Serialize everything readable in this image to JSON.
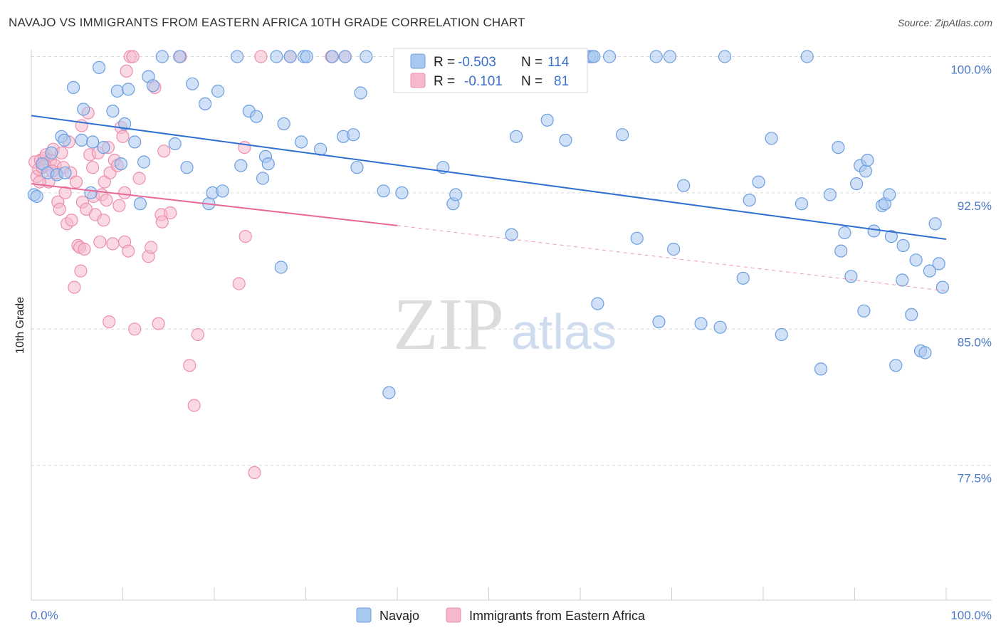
{
  "title": "NAVAJO VS IMMIGRANTS FROM EASTERN AFRICA 10TH GRADE CORRELATION CHART",
  "source": "Source: ZipAtlas.com",
  "watermark": {
    "zip": "ZIP",
    "atlas": "atlas"
  },
  "colors": {
    "navajo_fill": "#a9c8f0",
    "navajo_stroke": "#6a9ee0",
    "navajo_line": "#2f6fd0",
    "ea_fill": "#f6b9cc",
    "ea_stroke": "#ec8fae",
    "ea_line": "#e8679a",
    "tick_text": "#4a78c8",
    "grid": "#d8d8d8"
  },
  "legend": {
    "rows": [
      {
        "r_label": "R =",
        "r_value": "-0.503",
        "n_label": "N =",
        "n_value": "114"
      },
      {
        "r_label": "R =",
        "r_value": "-0.101",
        "n_label": "N =",
        "n_value": "81"
      }
    ]
  },
  "bottom_legend": [
    "Navajo",
    "Immigrants from Eastern Africa"
  ],
  "chart_data": {
    "type": "scatter",
    "title": "NAVAJO VS IMMIGRANTS FROM EASTERN AFRICA 10TH GRADE CORRELATION CHART",
    "xlabel": "",
    "ylabel": "10th Grade",
    "xlim": [
      0,
      100
    ],
    "ylim": [
      70.5,
      101
    ],
    "x_tick_labels": [
      "0.0%",
      "100.0%"
    ],
    "y_ticks": [
      77.5,
      85.0,
      92.5,
      100.0
    ],
    "y_tick_labels": [
      "77.5%",
      "85.0%",
      "92.5%",
      "100.0%"
    ],
    "grid": "horizontal dashed",
    "legend_position": "top-center",
    "series": [
      {
        "name": "Navajo",
        "r": -0.503,
        "n": 114,
        "trend": {
          "x": [
            0,
            100
          ],
          "y": [
            96.75,
            89.95
          ]
        },
        "points": [
          [
            0.3,
            92.4
          ],
          [
            0.6,
            92.3
          ],
          [
            1.2,
            94.1
          ],
          [
            1.8,
            93.6
          ],
          [
            2.2,
            94.7
          ],
          [
            2.8,
            93.5
          ],
          [
            3.3,
            95.6
          ],
          [
            3.6,
            95.4
          ],
          [
            4.6,
            98.3
          ],
          [
            5.5,
            95.4
          ],
          [
            5.7,
            97.1
          ],
          [
            6.5,
            92.5
          ],
          [
            6.7,
            95.3
          ],
          [
            7.4,
            99.4
          ],
          [
            7.9,
            95.0
          ],
          [
            8.9,
            97.0
          ],
          [
            9.4,
            98.1
          ],
          [
            9.8,
            94.1
          ],
          [
            10.2,
            96.3
          ],
          [
            10.6,
            98.2
          ],
          [
            11.3,
            95.3
          ],
          [
            11.9,
            91.9
          ],
          [
            12.3,
            94.2
          ],
          [
            12.8,
            98.9
          ],
          [
            13.3,
            98.4
          ],
          [
            14.3,
            100.0
          ],
          [
            15.7,
            95.2
          ],
          [
            16.2,
            100.0
          ],
          [
            17.0,
            93.9
          ],
          [
            17.6,
            98.5
          ],
          [
            19.0,
            97.4
          ],
          [
            19.4,
            91.9
          ],
          [
            19.8,
            92.5
          ],
          [
            20.4,
            98.1
          ],
          [
            20.9,
            92.6
          ],
          [
            22.5,
            100.0
          ],
          [
            22.9,
            94.0
          ],
          [
            23.8,
            97.0
          ],
          [
            24.6,
            96.7
          ],
          [
            25.3,
            93.3
          ],
          [
            25.6,
            94.5
          ],
          [
            25.9,
            94.1
          ],
          [
            26.8,
            100.0
          ],
          [
            27.3,
            88.4
          ],
          [
            27.6,
            96.3
          ],
          [
            28.3,
            100.0
          ],
          [
            29.5,
            95.3
          ],
          [
            29.8,
            100.0
          ],
          [
            30.1,
            100.0
          ],
          [
            31.6,
            94.9
          ],
          [
            32.9,
            100.0
          ],
          [
            34.1,
            95.6
          ],
          [
            34.3,
            100.0
          ],
          [
            35.2,
            95.7
          ],
          [
            35.6,
            93.9
          ],
          [
            36.0,
            98.0
          ],
          [
            36.6,
            100.0
          ],
          [
            38.5,
            92.6
          ],
          [
            39.1,
            81.5
          ],
          [
            40.5,
            92.5
          ],
          [
            45.0,
            93.9
          ],
          [
            46.1,
            91.9
          ],
          [
            46.4,
            92.4
          ],
          [
            52.5,
            90.2
          ],
          [
            53.0,
            95.6
          ],
          [
            53.3,
            100.0
          ],
          [
            56.4,
            96.5
          ],
          [
            58.4,
            95.4
          ],
          [
            61.0,
            100.0
          ],
          [
            61.3,
            100.0
          ],
          [
            61.5,
            100.0
          ],
          [
            61.9,
            86.4
          ],
          [
            63.2,
            100.0
          ],
          [
            64.6,
            95.7
          ],
          [
            66.2,
            90.0
          ],
          [
            68.3,
            100.0
          ],
          [
            68.6,
            85.4
          ],
          [
            69.8,
            100.0
          ],
          [
            70.2,
            89.4
          ],
          [
            71.3,
            92.9
          ],
          [
            73.2,
            85.3
          ],
          [
            75.3,
            85.1
          ],
          [
            75.8,
            100.0
          ],
          [
            77.8,
            87.8
          ],
          [
            78.5,
            92.1
          ],
          [
            79.5,
            93.1
          ],
          [
            80.9,
            95.5
          ],
          [
            82.0,
            84.7
          ],
          [
            84.2,
            91.9
          ],
          [
            84.8,
            100.0
          ],
          [
            86.3,
            82.8
          ],
          [
            87.3,
            92.4
          ],
          [
            88.2,
            95.0
          ],
          [
            88.5,
            89.3
          ],
          [
            88.9,
            90.3
          ],
          [
            89.6,
            87.9
          ],
          [
            90.2,
            93.0
          ],
          [
            90.6,
            94.0
          ],
          [
            91.0,
            86.0
          ],
          [
            91.2,
            93.7
          ],
          [
            91.4,
            94.3
          ],
          [
            92.1,
            90.4
          ],
          [
            93.0,
            91.8
          ],
          [
            93.3,
            91.9
          ],
          [
            93.8,
            92.4
          ],
          [
            94.0,
            90.1
          ],
          [
            94.5,
            83.0
          ],
          [
            95.2,
            87.7
          ],
          [
            95.3,
            89.6
          ],
          [
            96.2,
            85.8
          ],
          [
            96.7,
            88.8
          ],
          [
            97.2,
            83.8
          ],
          [
            97.7,
            83.7
          ],
          [
            98.2,
            88.2
          ],
          [
            98.8,
            90.8
          ],
          [
            99.2,
            88.6
          ],
          [
            99.6,
            87.3
          ],
          [
            3.7,
            93.6
          ]
        ]
      },
      {
        "name": "Immigrants from Eastern Africa",
        "r": -0.101,
        "n": 81,
        "trend_solid": {
          "x": [
            0,
            40
          ],
          "y": [
            93.0,
            90.7
          ]
        },
        "trend_dashed": {
          "x": [
            40,
            100
          ],
          "y": [
            90.7,
            87.1
          ]
        },
        "points": [
          [
            0.4,
            94.2
          ],
          [
            0.6,
            93.4
          ],
          [
            0.8,
            93.8
          ],
          [
            1.0,
            94.3
          ],
          [
            1.2,
            93.9
          ],
          [
            1.4,
            94.4
          ],
          [
            1.6,
            94.6
          ],
          [
            1.9,
            93.1
          ],
          [
            2.1,
            94.3
          ],
          [
            2.4,
            94.9
          ],
          [
            2.6,
            94.0
          ],
          [
            2.7,
            93.6
          ],
          [
            2.9,
            92.0
          ],
          [
            3.1,
            91.6
          ],
          [
            3.3,
            94.7
          ],
          [
            3.5,
            93.9
          ],
          [
            3.7,
            92.5
          ],
          [
            3.9,
            90.8
          ],
          [
            4.1,
            95.3
          ],
          [
            4.3,
            93.6
          ],
          [
            4.4,
            91.0
          ],
          [
            4.7,
            87.3
          ],
          [
            4.9,
            93.1
          ],
          [
            5.1,
            89.6
          ],
          [
            5.3,
            89.5
          ],
          [
            5.4,
            88.2
          ],
          [
            5.5,
            96.2
          ],
          [
            5.6,
            92.0
          ],
          [
            5.8,
            89.4
          ],
          [
            6.0,
            91.6
          ],
          [
            6.2,
            96.9
          ],
          [
            6.4,
            94.6
          ],
          [
            6.7,
            93.9
          ],
          [
            6.8,
            92.3
          ],
          [
            7.0,
            91.3
          ],
          [
            7.3,
            94.7
          ],
          [
            7.5,
            89.8
          ],
          [
            7.7,
            92.4
          ],
          [
            7.9,
            91.0
          ],
          [
            8.0,
            93.1
          ],
          [
            8.2,
            92.1
          ],
          [
            8.4,
            95.0
          ],
          [
            8.5,
            85.4
          ],
          [
            8.6,
            93.6
          ],
          [
            8.9,
            89.7
          ],
          [
            9.1,
            94.3
          ],
          [
            9.4,
            94.0
          ],
          [
            9.6,
            91.8
          ],
          [
            9.8,
            96.1
          ],
          [
            10.0,
            95.6
          ],
          [
            10.2,
            89.8
          ],
          [
            10.4,
            99.2
          ],
          [
            10.6,
            89.3
          ],
          [
            10.8,
            100.0
          ],
          [
            11.1,
            100.0
          ],
          [
            11.3,
            85.0
          ],
          [
            11.8,
            93.3
          ],
          [
            12.8,
            89.0
          ],
          [
            13.1,
            89.5
          ],
          [
            13.5,
            98.3
          ],
          [
            13.9,
            85.3
          ],
          [
            14.2,
            91.3
          ],
          [
            14.3,
            90.9
          ],
          [
            14.5,
            94.8
          ],
          [
            15.2,
            91.4
          ],
          [
            16.3,
            100.0
          ],
          [
            17.3,
            83.0
          ],
          [
            17.8,
            80.8
          ],
          [
            18.2,
            84.7
          ],
          [
            22.7,
            87.5
          ],
          [
            23.3,
            95.0
          ],
          [
            23.4,
            90.1
          ],
          [
            24.4,
            77.1
          ],
          [
            25.1,
            100.0
          ],
          [
            28.3,
            100.0
          ],
          [
            32.8,
            100.0
          ],
          [
            34.3,
            100.0
          ],
          [
            10.2,
            92.5
          ],
          [
            0.9,
            93.1
          ],
          [
            1.5,
            94.0
          ],
          [
            2.3,
            93.7
          ]
        ]
      }
    ]
  }
}
